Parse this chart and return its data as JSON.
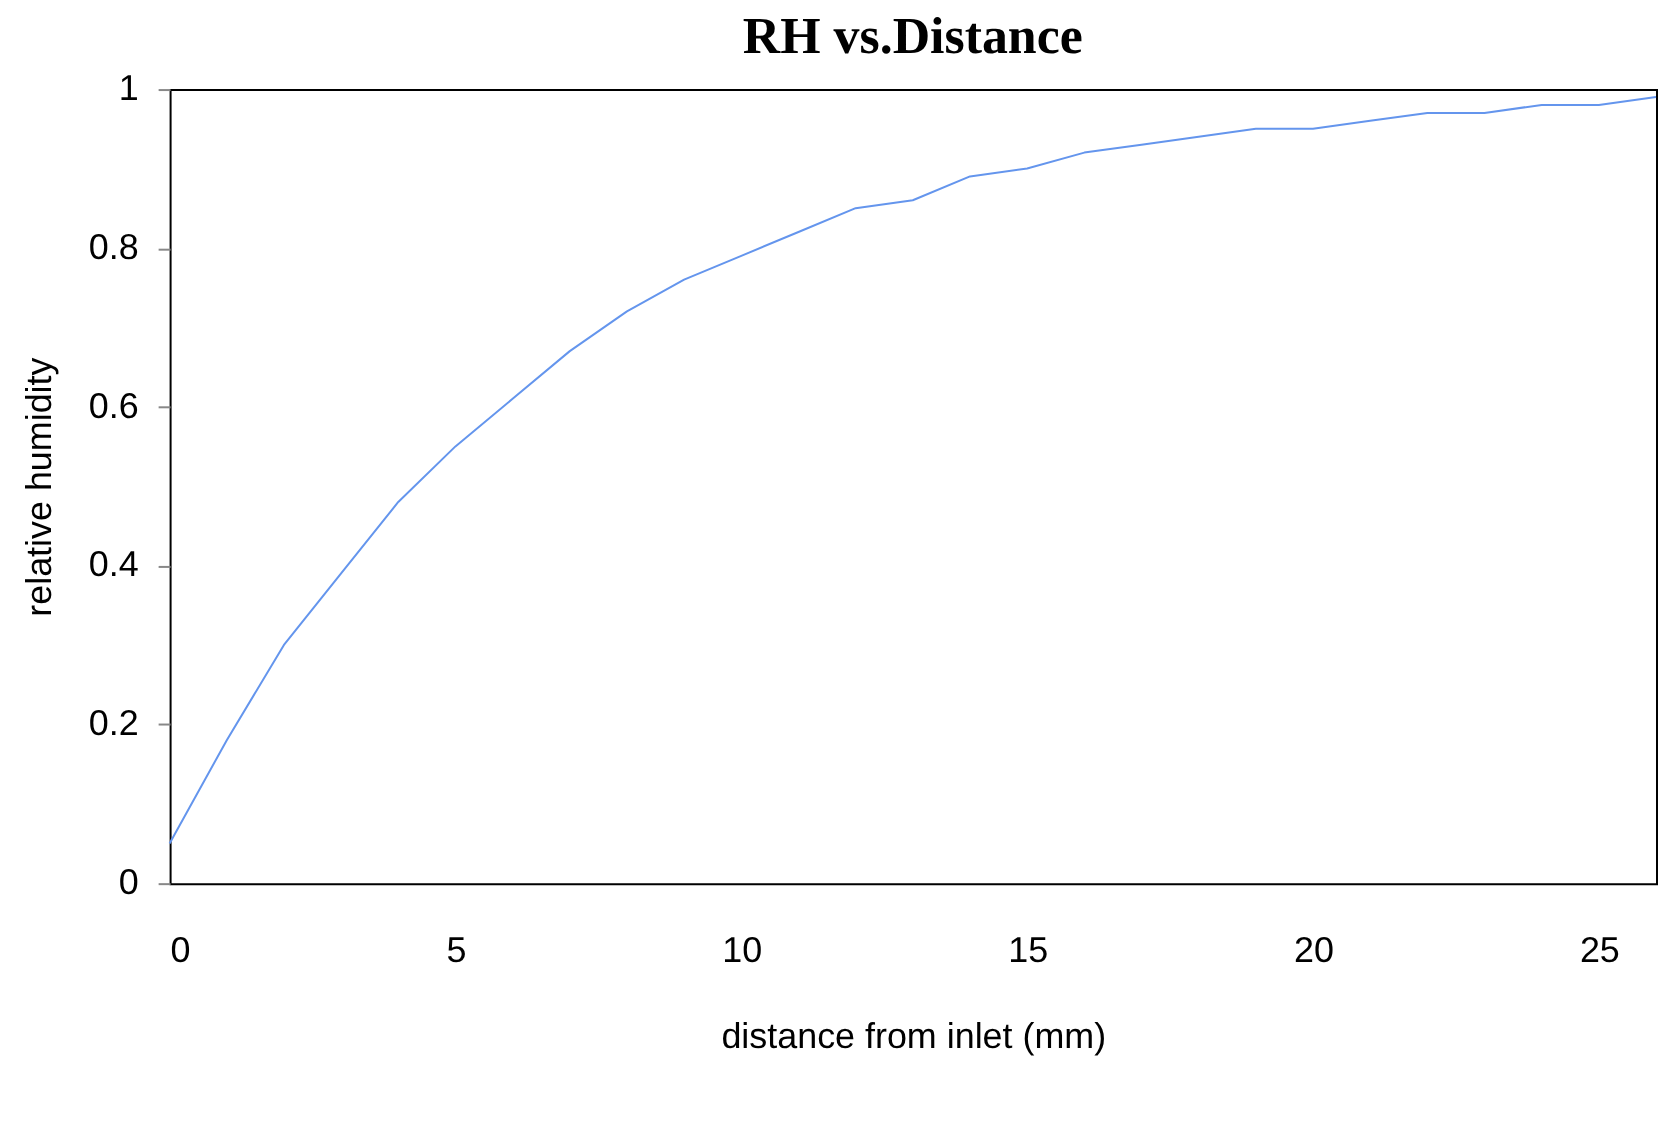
{
  "chart_data": {
    "type": "line",
    "title": "RH vs.Distance",
    "xlabel": "distance from inlet (mm)",
    "ylabel": "relative humidity",
    "x": [
      0,
      1,
      2,
      3,
      4,
      5,
      6,
      7,
      8,
      9,
      10,
      11,
      12,
      13,
      14,
      15,
      16,
      17,
      18,
      19,
      20,
      21,
      22,
      23,
      24,
      25,
      26
    ],
    "series": [
      {
        "color": "#6495ed",
        "values": [
          0.05,
          0.18,
          0.3,
          0.39,
          0.48,
          0.55,
          0.61,
          0.67,
          0.72,
          0.76,
          0.79,
          0.82,
          0.85,
          0.86,
          0.89,
          0.9,
          0.92,
          0.93,
          0.94,
          0.95,
          0.95,
          0.96,
          0.97,
          0.97,
          0.98,
          0.98,
          0.99
        ]
      }
    ],
    "xlim": [
      0,
      26
    ],
    "xticks": [
      0,
      5,
      10,
      15,
      20,
      25
    ],
    "ylim": [
      0,
      1
    ],
    "yticks": [
      0,
      0.2,
      0.4,
      0.6,
      0.8,
      1
    ],
    "grid": false,
    "legend": false,
    "marker": "none",
    "line_style": "solid"
  }
}
